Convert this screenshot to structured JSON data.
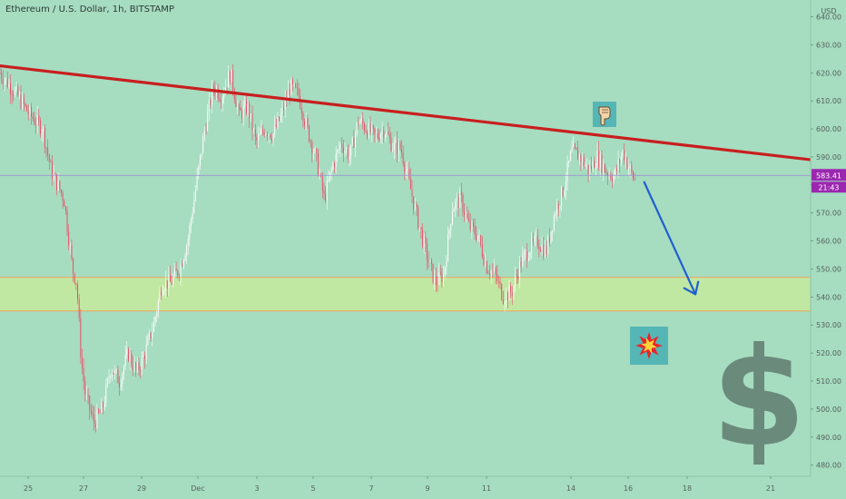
{
  "header": {
    "title": "Ethereum / U.S. Dollar, 1h, BITSTAMP"
  },
  "colors": {
    "background": "#a6dcc0",
    "candle_up": "#ffffff",
    "candle_down": "#e8506a",
    "trendline": "#c81e1e",
    "zone_fill": "#c4ea9e",
    "zone_border": "#f0a35a",
    "arrow": "#1f5fd0",
    "price_line": "#9b8fd6",
    "price_tag": "#9b27b0",
    "dollar": "#6a8a7c",
    "icon_box": "#55b6b6"
  },
  "icons": {
    "pointer": "pointing-down-hand-icon",
    "burst": "explosion-icon",
    "dollar": "dollar-sign-icon"
  },
  "chart_data": {
    "type": "candlestick",
    "title": "Ethereum / U.S. Dollar, 1h, BITSTAMP",
    "y_unit": "USD",
    "ylim": [
      476,
      646
    ],
    "x_ticks": [
      "25",
      "27",
      "29",
      "Dec",
      "3",
      "5",
      "7",
      "9",
      "11",
      "14",
      "16",
      "18",
      "21"
    ],
    "y_ticks": [
      "480.00",
      "490.00",
      "500.00",
      "510.00",
      "520.00",
      "530.00",
      "540.00",
      "550.00",
      "560.00",
      "570.00",
      "580.00",
      "590.00",
      "600.00",
      "610.00",
      "620.00",
      "630.00",
      "640.00"
    ],
    "current_price": "583.41",
    "countdown": "21:43",
    "price_path": [
      [
        0,
        620
      ],
      [
        4,
        612
      ],
      [
        7,
        605
      ],
      [
        10,
        600
      ],
      [
        12,
        585
      ],
      [
        15,
        575
      ],
      [
        17,
        550
      ],
      [
        18,
        545
      ],
      [
        19,
        518
      ],
      [
        20,
        505
      ],
      [
        22,
        495
      ],
      [
        24,
        500
      ],
      [
        26,
        515
      ],
      [
        28,
        510
      ],
      [
        30,
        520
      ],
      [
        32,
        513
      ],
      [
        34,
        520
      ],
      [
        36,
        530
      ],
      [
        38,
        545
      ],
      [
        40,
        545
      ],
      [
        42,
        550
      ],
      [
        44,
        560
      ],
      [
        46,
        580
      ],
      [
        48,
        600
      ],
      [
        50,
        615
      ],
      [
        52,
        612
      ],
      [
        54,
        620
      ],
      [
        56,
        605
      ],
      [
        58,
        608
      ],
      [
        60,
        595
      ],
      [
        62,
        600
      ],
      [
        64,
        598
      ],
      [
        66,
        605
      ],
      [
        68,
        615
      ],
      [
        70,
        612
      ],
      [
        72,
        600
      ],
      [
        74,
        590
      ],
      [
        76,
        575
      ],
      [
        78,
        587
      ],
      [
        80,
        595
      ],
      [
        82,
        590
      ],
      [
        84,
        603
      ],
      [
        86,
        600
      ],
      [
        88,
        597
      ],
      [
        90,
        600
      ],
      [
        92,
        594
      ],
      [
        94,
        593
      ],
      [
        96,
        580
      ],
      [
        98,
        567
      ],
      [
        100,
        555
      ],
      [
        102,
        545
      ],
      [
        104,
        548
      ],
      [
        106,
        572
      ],
      [
        108,
        575
      ],
      [
        110,
        565
      ],
      [
        112,
        562
      ],
      [
        114,
        551
      ],
      [
        116,
        548
      ],
      [
        118,
        540
      ],
      [
        120,
        542
      ],
      [
        122,
        552
      ],
      [
        124,
        557
      ],
      [
        126,
        560
      ],
      [
        128,
        556
      ],
      [
        130,
        570
      ],
      [
        132,
        578
      ],
      [
        134,
        592
      ],
      [
        136,
        590
      ],
      [
        138,
        585
      ],
      [
        140,
        590
      ],
      [
        142,
        585
      ],
      [
        144,
        583
      ],
      [
        146,
        592
      ],
      [
        148,
        584
      ],
      [
        149,
        581
      ]
    ],
    "trendline": {
      "x": [
        0,
        190
      ],
      "y": [
        622.5,
        589
      ]
    },
    "support_zone": [
      535,
      547
    ],
    "projection_arrow": {
      "x": [
        151,
        163
      ],
      "y": [
        581,
        541
      ]
    },
    "x_range": [
      0,
      190
    ]
  }
}
